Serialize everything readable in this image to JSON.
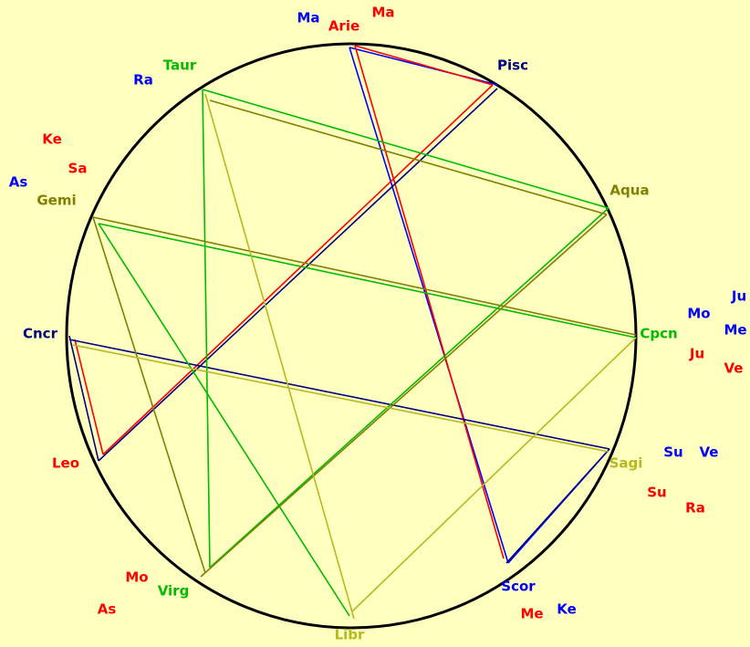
{
  "signs": [
    "Arie",
    "Pisc",
    "Aqua",
    "Cpcn",
    "Sagi",
    "Scor",
    "Libr",
    "Virg",
    "Leo",
    "Cncr",
    "Gemi",
    "Taur"
  ],
  "planets": [
    "Ma",
    "Ma",
    "Ra",
    "Ke",
    "Sa",
    "As",
    "Ju",
    "Mo",
    "Me",
    "Ju",
    "Ve",
    "Su",
    "Ve",
    "Su",
    "Ra",
    "Mo",
    "As",
    "Ke",
    "Me"
  ]
}
